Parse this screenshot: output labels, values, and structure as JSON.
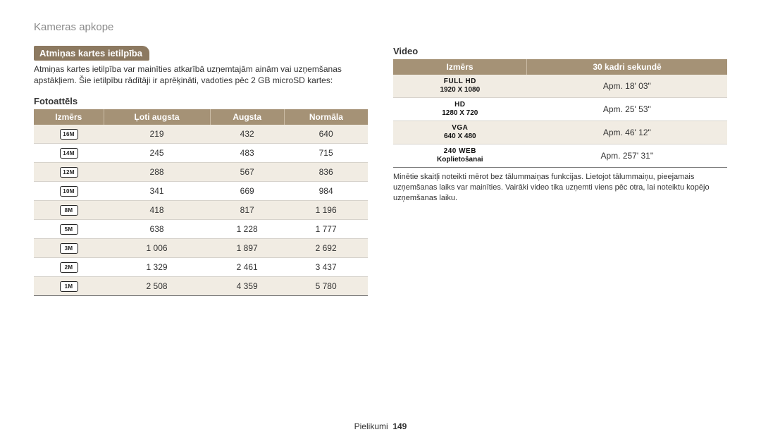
{
  "breadcrumb": "Kameras apkope",
  "left": {
    "bar": "Atmiņas kartes ietilpība",
    "intro": "Atmiņas kartes ietilpība var mainīties atkarībā uzņemtajām ainām vai uzņemšanas apstākļiem. Šie ietilpību rādītāji ir aprēķināti, vadoties pēc 2 GB microSD kartes:",
    "sub": "Fotoattēls",
    "columns": [
      "Izmērs",
      "Ļoti augsta",
      "Augsta",
      "Normāla"
    ],
    "rows": [
      {
        "icon": "16M",
        "v": [
          "219",
          "432",
          "640"
        ]
      },
      {
        "icon": "14M",
        "v": [
          "245",
          "483",
          "715"
        ]
      },
      {
        "icon": "12M",
        "v": [
          "288",
          "567",
          "836"
        ]
      },
      {
        "icon": "10M",
        "v": [
          "341",
          "669",
          "984"
        ]
      },
      {
        "icon": "8M",
        "v": [
          "418",
          "817",
          "1 196"
        ]
      },
      {
        "icon": "5M",
        "v": [
          "638",
          "1 228",
          "1 777"
        ]
      },
      {
        "icon": "3M",
        "v": [
          "1 006",
          "1 897",
          "2 692"
        ]
      },
      {
        "icon": "2M",
        "v": [
          "1 329",
          "2 461",
          "3 437"
        ]
      },
      {
        "icon": "1M",
        "v": [
          "2 508",
          "4 359",
          "5 780"
        ]
      }
    ]
  },
  "right": {
    "sub": "Video",
    "columns": [
      "Izmērs",
      "30 kadri sekundē"
    ],
    "rows": [
      {
        "badge": "FULL HD",
        "res": "1920 X 1080",
        "val": "Apm. 18' 03\""
      },
      {
        "badge": "HD",
        "res": "1280 X 720",
        "val": "Apm. 25' 53\""
      },
      {
        "badge": "VGA",
        "res": "640 X 480",
        "val": "Apm. 46' 12\""
      },
      {
        "badge": "240 WEB",
        "res": "Koplietošanai",
        "val": "Apm. 257' 31\""
      }
    ],
    "foot": "Minētie skaitļi noteikti mērot bez tālummaiņas funkcijas. Lietojot tālummaiņu, pieejamais uzņemšanas laiks var mainīties. Vairāki video tika uzņemti viens pēc otra, lai noteiktu kopējo uzņemšanas laiku."
  },
  "pager": {
    "label": "Pielikumi",
    "num": "149"
  }
}
